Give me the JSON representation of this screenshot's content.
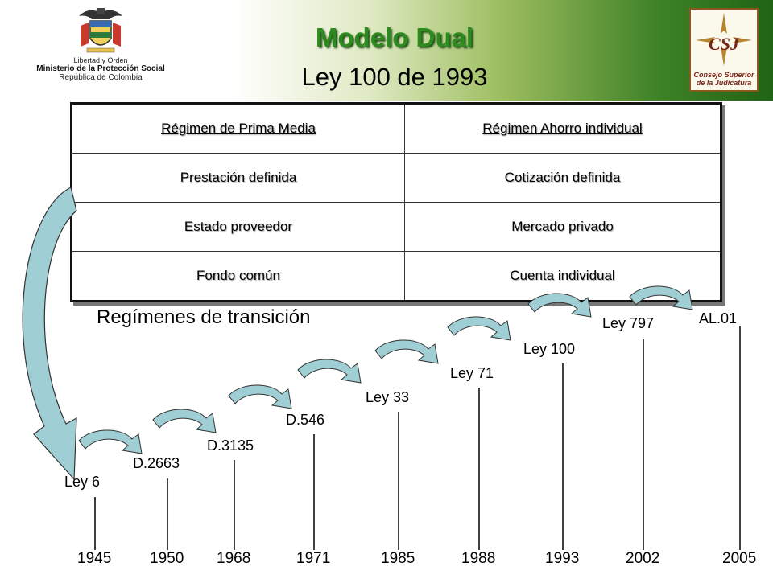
{
  "header": {
    "title": "Modelo Dual",
    "subtitle": "Ley 100 de 1993",
    "logo_left": {
      "motto": "Libertad y Orden",
      "ministry": "Ministerio de la Protección Social",
      "country": "República de Colombia"
    },
    "logo_right": {
      "acronym": "CSJ",
      "name_line1": "Consejo Superior",
      "name_line2": "de la Judicatura"
    }
  },
  "table": {
    "headers": [
      "Régimen de Prima Media",
      "Régimen Ahorro individual"
    ],
    "rows": [
      [
        "Prestación definida",
        "Cotización definida"
      ],
      [
        "Estado proveedor",
        "Mercado privado"
      ],
      [
        "Fondo común",
        "Cuenta individual"
      ]
    ]
  },
  "transition_label": "Regímenes de transición",
  "timeline": {
    "events": [
      {
        "law": "Ley 6",
        "year": "1945"
      },
      {
        "law": "D.2663",
        "year": "1950"
      },
      {
        "law": "D.3135",
        "year": "1968"
      },
      {
        "law": "D.546",
        "year": "1971"
      },
      {
        "law": "Ley 33",
        "year": "1985"
      },
      {
        "law": "Ley 71",
        "year": "1988"
      },
      {
        "law": "Ley 100",
        "year": "1993"
      },
      {
        "law": "Ley 797",
        "year": "2002"
      },
      {
        "law": "AL.01",
        "year": "2005"
      }
    ]
  },
  "colors": {
    "title": "#2d8a1f",
    "arrow_fill": "#9fcfd4",
    "header_band_dark": "#1f6414"
  }
}
